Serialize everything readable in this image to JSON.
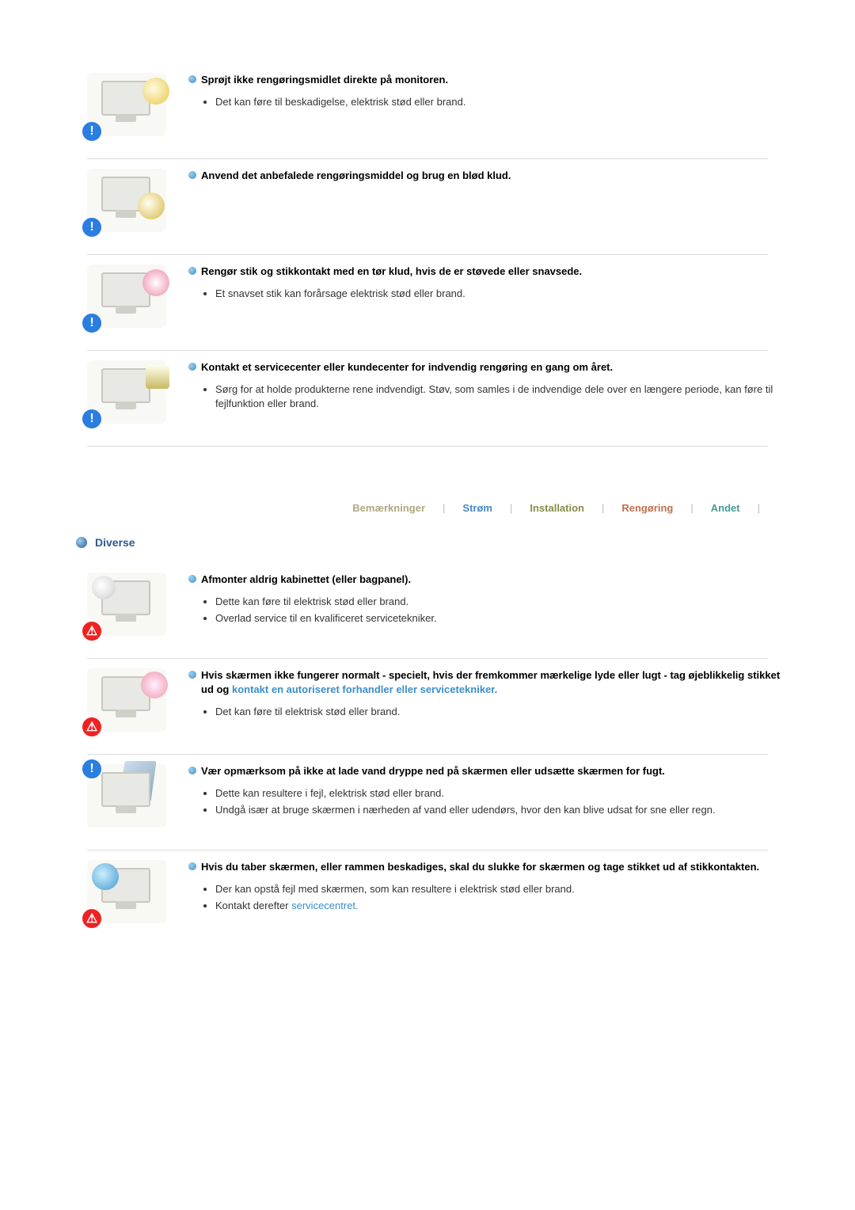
{
  "blocks_top": [
    {
      "illus_style": "style-spray",
      "badge": "blue",
      "heading": "Sprøjt ikke rengøringsmidlet direkte på monitoren.",
      "bullets": [
        "Det kan føre til beskadigelse, elektrisk stød eller brand."
      ]
    },
    {
      "illus_style": "style-cloth",
      "badge": "blue",
      "heading": "Anvend det anbefalede rengøringsmiddel og brug en blød klud.",
      "bullets": []
    },
    {
      "illus_style": "style-plug",
      "badge": "blue",
      "heading": "Rengør stik og stikkontakt med en tør klud, hvis de er støvede eller snavsede.",
      "bullets": [
        "Et snavset stik kan forårsage elektrisk stød eller brand."
      ]
    },
    {
      "illus_style": "style-house",
      "badge": "blue",
      "heading": "Kontakt et servicecenter eller kundecenter for indvendig rengøring en gang om året.",
      "bullets": [
        "Sørg for at holde produkterne rene indvendigt. Støv, som samles i de indvendige dele over en længere periode, kan føre til fejlfunktion eller brand."
      ]
    }
  ],
  "tabs": {
    "remarks": "Bemærkninger",
    "power": "Strøm",
    "install": "Installation",
    "clean": "Rengøring",
    "other": "Andet"
  },
  "section_title": "Diverse",
  "blocks_bottom": [
    {
      "illus_style": "style-open",
      "badge": "red",
      "heading_plain": "Afmonter aldrig kabinettet (eller bagpanel).",
      "bullets": [
        "Dette kan føre til elektrisk stød eller brand.",
        "Overlad service til en kvalificeret servicetekniker."
      ]
    },
    {
      "illus_style": "style-smoke",
      "badge": "red",
      "heading_pre": "Hvis skærmen ikke fungerer normalt - specielt, hvis der fremkommer mærkelige lyde eller lugt - tag øjeblikkelig stikket ud og ",
      "heading_link": "kontakt en autoriseret forhandler eller servicetekniker.",
      "bullets": [
        "Det kan føre til elektrisk stød eller brand."
      ]
    },
    {
      "illus_style": "style-window",
      "top_badge": true,
      "heading_plain": "Vær opmærksom på ikke at lade vand dryppe ned på skærmen eller udsætte skærmen for fugt.",
      "bullets": [
        "Dette kan resultere i fejl, elektrisk stød eller brand.",
        "Undgå især at bruge skærmen i nærheden af vand eller udendørs, hvor den kan blive udsat for sne eller regn."
      ]
    },
    {
      "illus_style": "style-drop",
      "badge": "red",
      "heading_plain": "Hvis du taber skærmen, eller rammen beskadiges, skal du slukke for skærmen og tage stikket ud af stikkontakten.",
      "bullets_mixed": [
        {
          "text": "Der kan opstå fejl med skærmen, som kan resultere i elektrisk stød eller brand."
        },
        {
          "pre": "Kontakt derefter ",
          "link": "servicecentret."
        }
      ]
    }
  ],
  "colors": {
    "heading_bullet": "#3a8ecb",
    "link": "#3a8ecb",
    "divider": "#dddddd",
    "badge_blue": "#2a7de1",
    "badge_red": "#e22222",
    "section_title": "#2a5a90"
  }
}
